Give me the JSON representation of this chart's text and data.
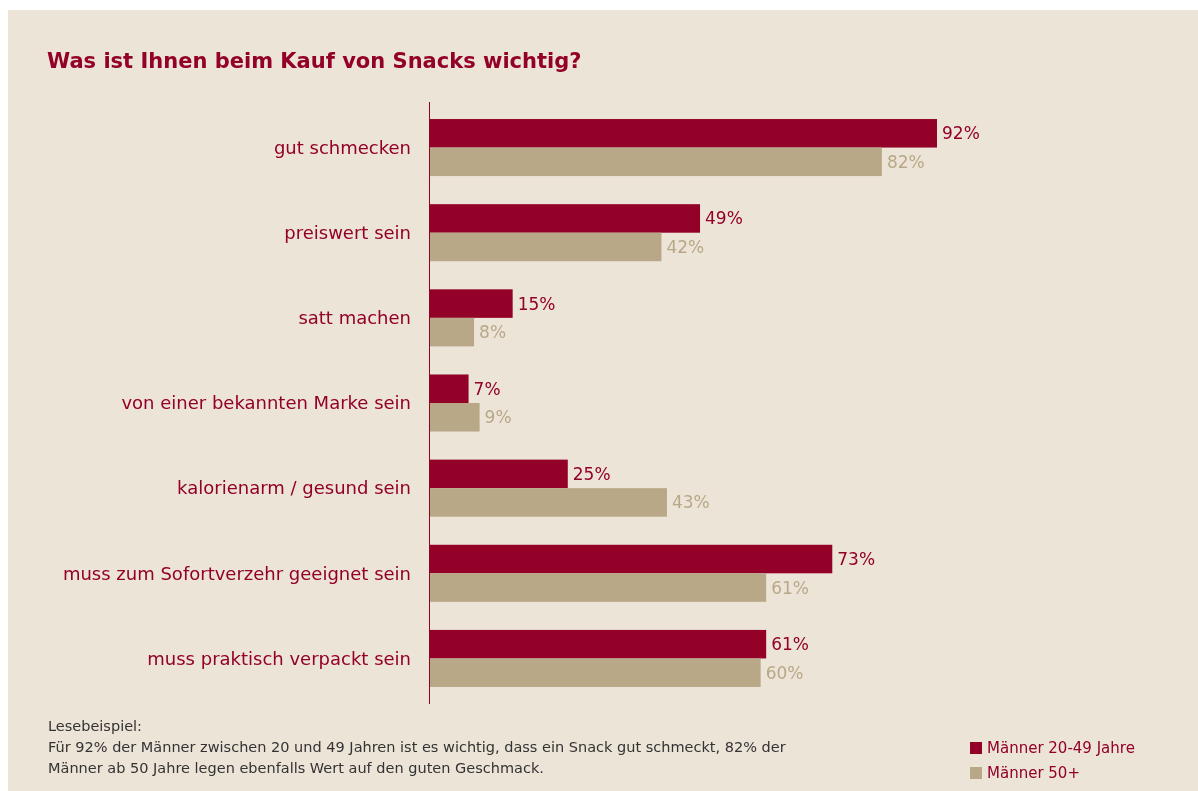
{
  "chart_data": {
    "type": "bar",
    "orientation": "horizontal",
    "title": "Was ist Ihnen beim Kauf von Snacks wichtig?",
    "categories": [
      "gut schmecken",
      "preiswert sein",
      "satt machen",
      "von einer bekannten Marke sein",
      "kalorienarm / gesund sein",
      "muss zum Sofortverzehr geeignet sein",
      "muss praktisch verpackt sein"
    ],
    "series": [
      {
        "name": "Männer 20-49 Jahre",
        "color": "#930028",
        "values": [
          92,
          49,
          15,
          7,
          25,
          73,
          61
        ],
        "value_labels": [
          "92%",
          "49%",
          "15%",
          "7%",
          "25%",
          "73%",
          "61%"
        ]
      },
      {
        "name": "Männer 50+",
        "color": "#b8a888",
        "values": [
          82,
          42,
          8,
          9,
          43,
          61,
          60
        ],
        "value_labels": [
          "82%",
          "42%",
          "8%",
          "9%",
          "43%",
          "61%",
          "60%"
        ]
      }
    ],
    "legend": "bottom right",
    "grid": false,
    "annotations": [
      "Lesebeispiel:",
      "Für 92% der Männer zwischen 20 und 49 Jahren ist es wichtig, dass ein Snack gut schmeckt, 82% der Männer ab 50 Jahre legen ebenfalls Wert auf den guten Geschmack."
    ]
  }
}
